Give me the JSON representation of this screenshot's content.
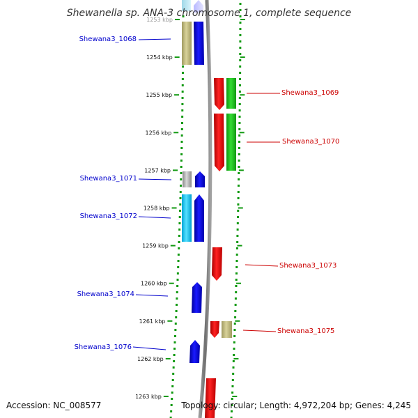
{
  "title": "Shewanella sp. ANA-3 chromosome 1, complete sequence",
  "footer": {
    "accession": "Accession: NC_008577",
    "summary": "Topology: circular; Length: 4,972,204 bp; Genes: 4,245"
  },
  "ticks": [
    {
      "label": "1253 kbp"
    },
    {
      "label": "1254 kbp"
    },
    {
      "label": "1255 kbp"
    },
    {
      "label": "1256 kbp"
    },
    {
      "label": "1257 kbp"
    },
    {
      "label": "1258 kbp"
    },
    {
      "label": "1259 kbp"
    },
    {
      "label": "1260 kbp"
    },
    {
      "label": "1261 kbp"
    },
    {
      "label": "1262 kbp"
    },
    {
      "label": "1263 kbp"
    }
  ],
  "genes": [
    {
      "name": "Shewana3_1068",
      "strand": "left",
      "color": "#0000ee",
      "label_color": "#0000cc"
    },
    {
      "name": "Shewana3_1069",
      "strand": "right",
      "color": "#ee0000",
      "label_color": "#cc0000"
    },
    {
      "name": "Shewana3_1070",
      "strand": "right",
      "color": "#ee0000",
      "label_color": "#cc0000"
    },
    {
      "name": "Shewana3_1071",
      "strand": "left",
      "color": "#0000ee",
      "label_color": "#0000cc"
    },
    {
      "name": "Shewana3_1072",
      "strand": "left",
      "color": "#0000ee",
      "label_color": "#0000cc"
    },
    {
      "name": "Shewana3_1073",
      "strand": "right",
      "color": "#ee0000",
      "label_color": "#cc0000"
    },
    {
      "name": "Shewana3_1074",
      "strand": "left",
      "color": "#0000ee",
      "label_color": "#0000cc"
    },
    {
      "name": "Shewana3_1075",
      "strand": "right",
      "color": "#ee0000",
      "label_color": "#cc0000"
    },
    {
      "name": "Shewana3_1076",
      "strand": "left",
      "color": "#0000ee",
      "label_color": "#0000cc"
    }
  ],
  "colors": {
    "backbone": "#888888",
    "tick_green": "#119911",
    "forward": "#ee0000",
    "reverse": "#0000ee"
  }
}
